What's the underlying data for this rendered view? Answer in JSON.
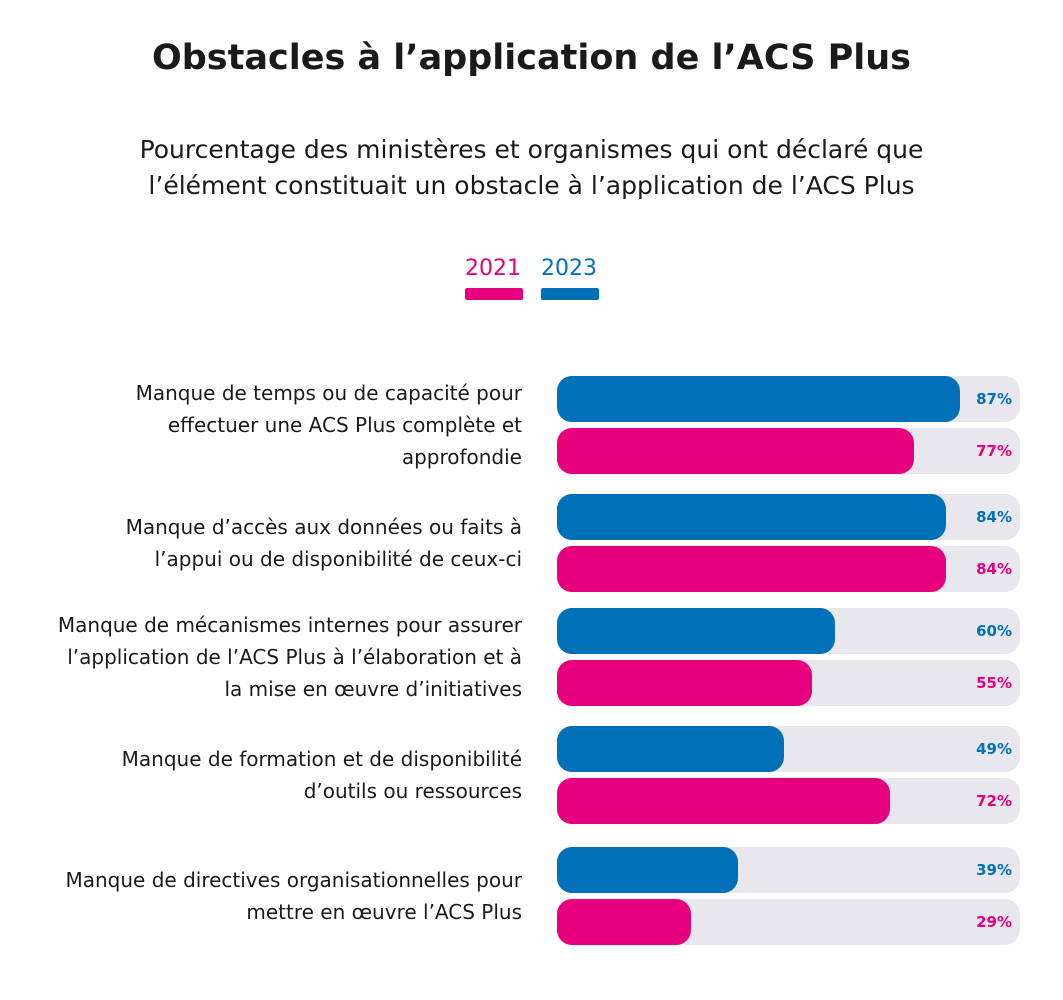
{
  "chart_data": {
    "type": "bar",
    "orientation": "horizontal",
    "title": "Obstacles à l’application de l’ACS Plus",
    "subtitle": "Pourcentage des ministères et organismes qui ont déclaré que l’élément constituait un obstacle à l’application de l’ACS Plus",
    "categories": [
      "Manque de temps ou de capacité pour effectuer une ACS Plus complète et approfondie",
      "Manque d’accès aux données ou faits à l’appui ou de disponibilité de ceux-ci",
      "Manque de mécanismes internes pour assurer l’application de l’ACS Plus à l’élaboration et à la mise en œuvre d’initiatives",
      "Manque de formation et de disponibilité d’outils ou ressources",
      "Manque de directives organisationnelles pour mettre en œuvre l’ACS Plus"
    ],
    "series": [
      {
        "name": "2021",
        "color": "#e6007e",
        "values": [
          77,
          84,
          55,
          72,
          29
        ],
        "value_labels": [
          "77%",
          "84%",
          "55%",
          "72%",
          "29%"
        ]
      },
      {
        "name": "2023",
        "color": "#0070b8",
        "values": [
          87,
          84,
          60,
          49,
          39
        ],
        "value_labels": [
          "87%",
          "84%",
          "60%",
          "49%",
          "39%"
        ]
      }
    ],
    "xlim": [
      0,
      100
    ],
    "track_color": "#e9e7ee"
  }
}
